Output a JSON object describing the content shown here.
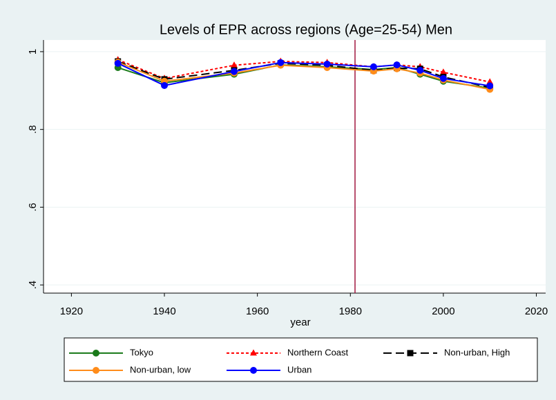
{
  "chart_data": {
    "type": "line",
    "title": "Levels of EPR across regions (Age=25-54) Men",
    "x_label": "year",
    "x": [
      1930,
      1940,
      1955,
      1965,
      1975,
      1985,
      1990,
      1995,
      2000,
      2010
    ],
    "series": [
      {
        "name": "Tokyo",
        "color": "#1a7a1a",
        "dash": "solid",
        "marker": "circle",
        "values": [
          0.959,
          0.92,
          0.942,
          0.966,
          0.961,
          0.954,
          0.959,
          0.942,
          0.924,
          0.906
        ]
      },
      {
        "name": "Northern Coast",
        "color": "#ff0000",
        "dash": "short",
        "marker": "triangle",
        "values": [
          0.979,
          0.931,
          0.965,
          0.975,
          0.972,
          0.961,
          0.966,
          0.961,
          0.947,
          0.922
        ]
      },
      {
        "name": "Non-urban, High",
        "color": "#000000",
        "dash": "long",
        "marker": "square",
        "values": [
          0.975,
          0.929,
          0.952,
          0.97,
          0.965,
          0.952,
          0.958,
          0.956,
          0.935,
          0.908
        ]
      },
      {
        "name": "Non-urban, low",
        "color": "#ff8c1a",
        "dash": "solid",
        "marker": "circle",
        "values": [
          0.973,
          0.924,
          0.945,
          0.965,
          0.959,
          0.95,
          0.956,
          0.945,
          0.927,
          0.903
        ]
      },
      {
        "name": "Urban",
        "color": "#0000ff",
        "dash": "solid",
        "marker": "circle",
        "values": [
          0.97,
          0.913,
          0.949,
          0.972,
          0.968,
          0.961,
          0.966,
          0.952,
          0.931,
          0.912
        ]
      }
    ],
    "xlim": [
      1914,
      2022
    ],
    "xticks": [
      1920,
      1940,
      1960,
      1980,
      2000,
      2020
    ],
    "ylim": [
      0.379,
      1.03
    ],
    "yticks": [
      {
        "value": 0.4,
        "label": ".4"
      },
      {
        "value": 0.6,
        "label": ".6"
      },
      {
        "value": 0.8,
        "label": ".8"
      },
      1
    ],
    "vline": 1981,
    "vline_color": "#a0153e",
    "grid": true,
    "legend": "bottom"
  }
}
